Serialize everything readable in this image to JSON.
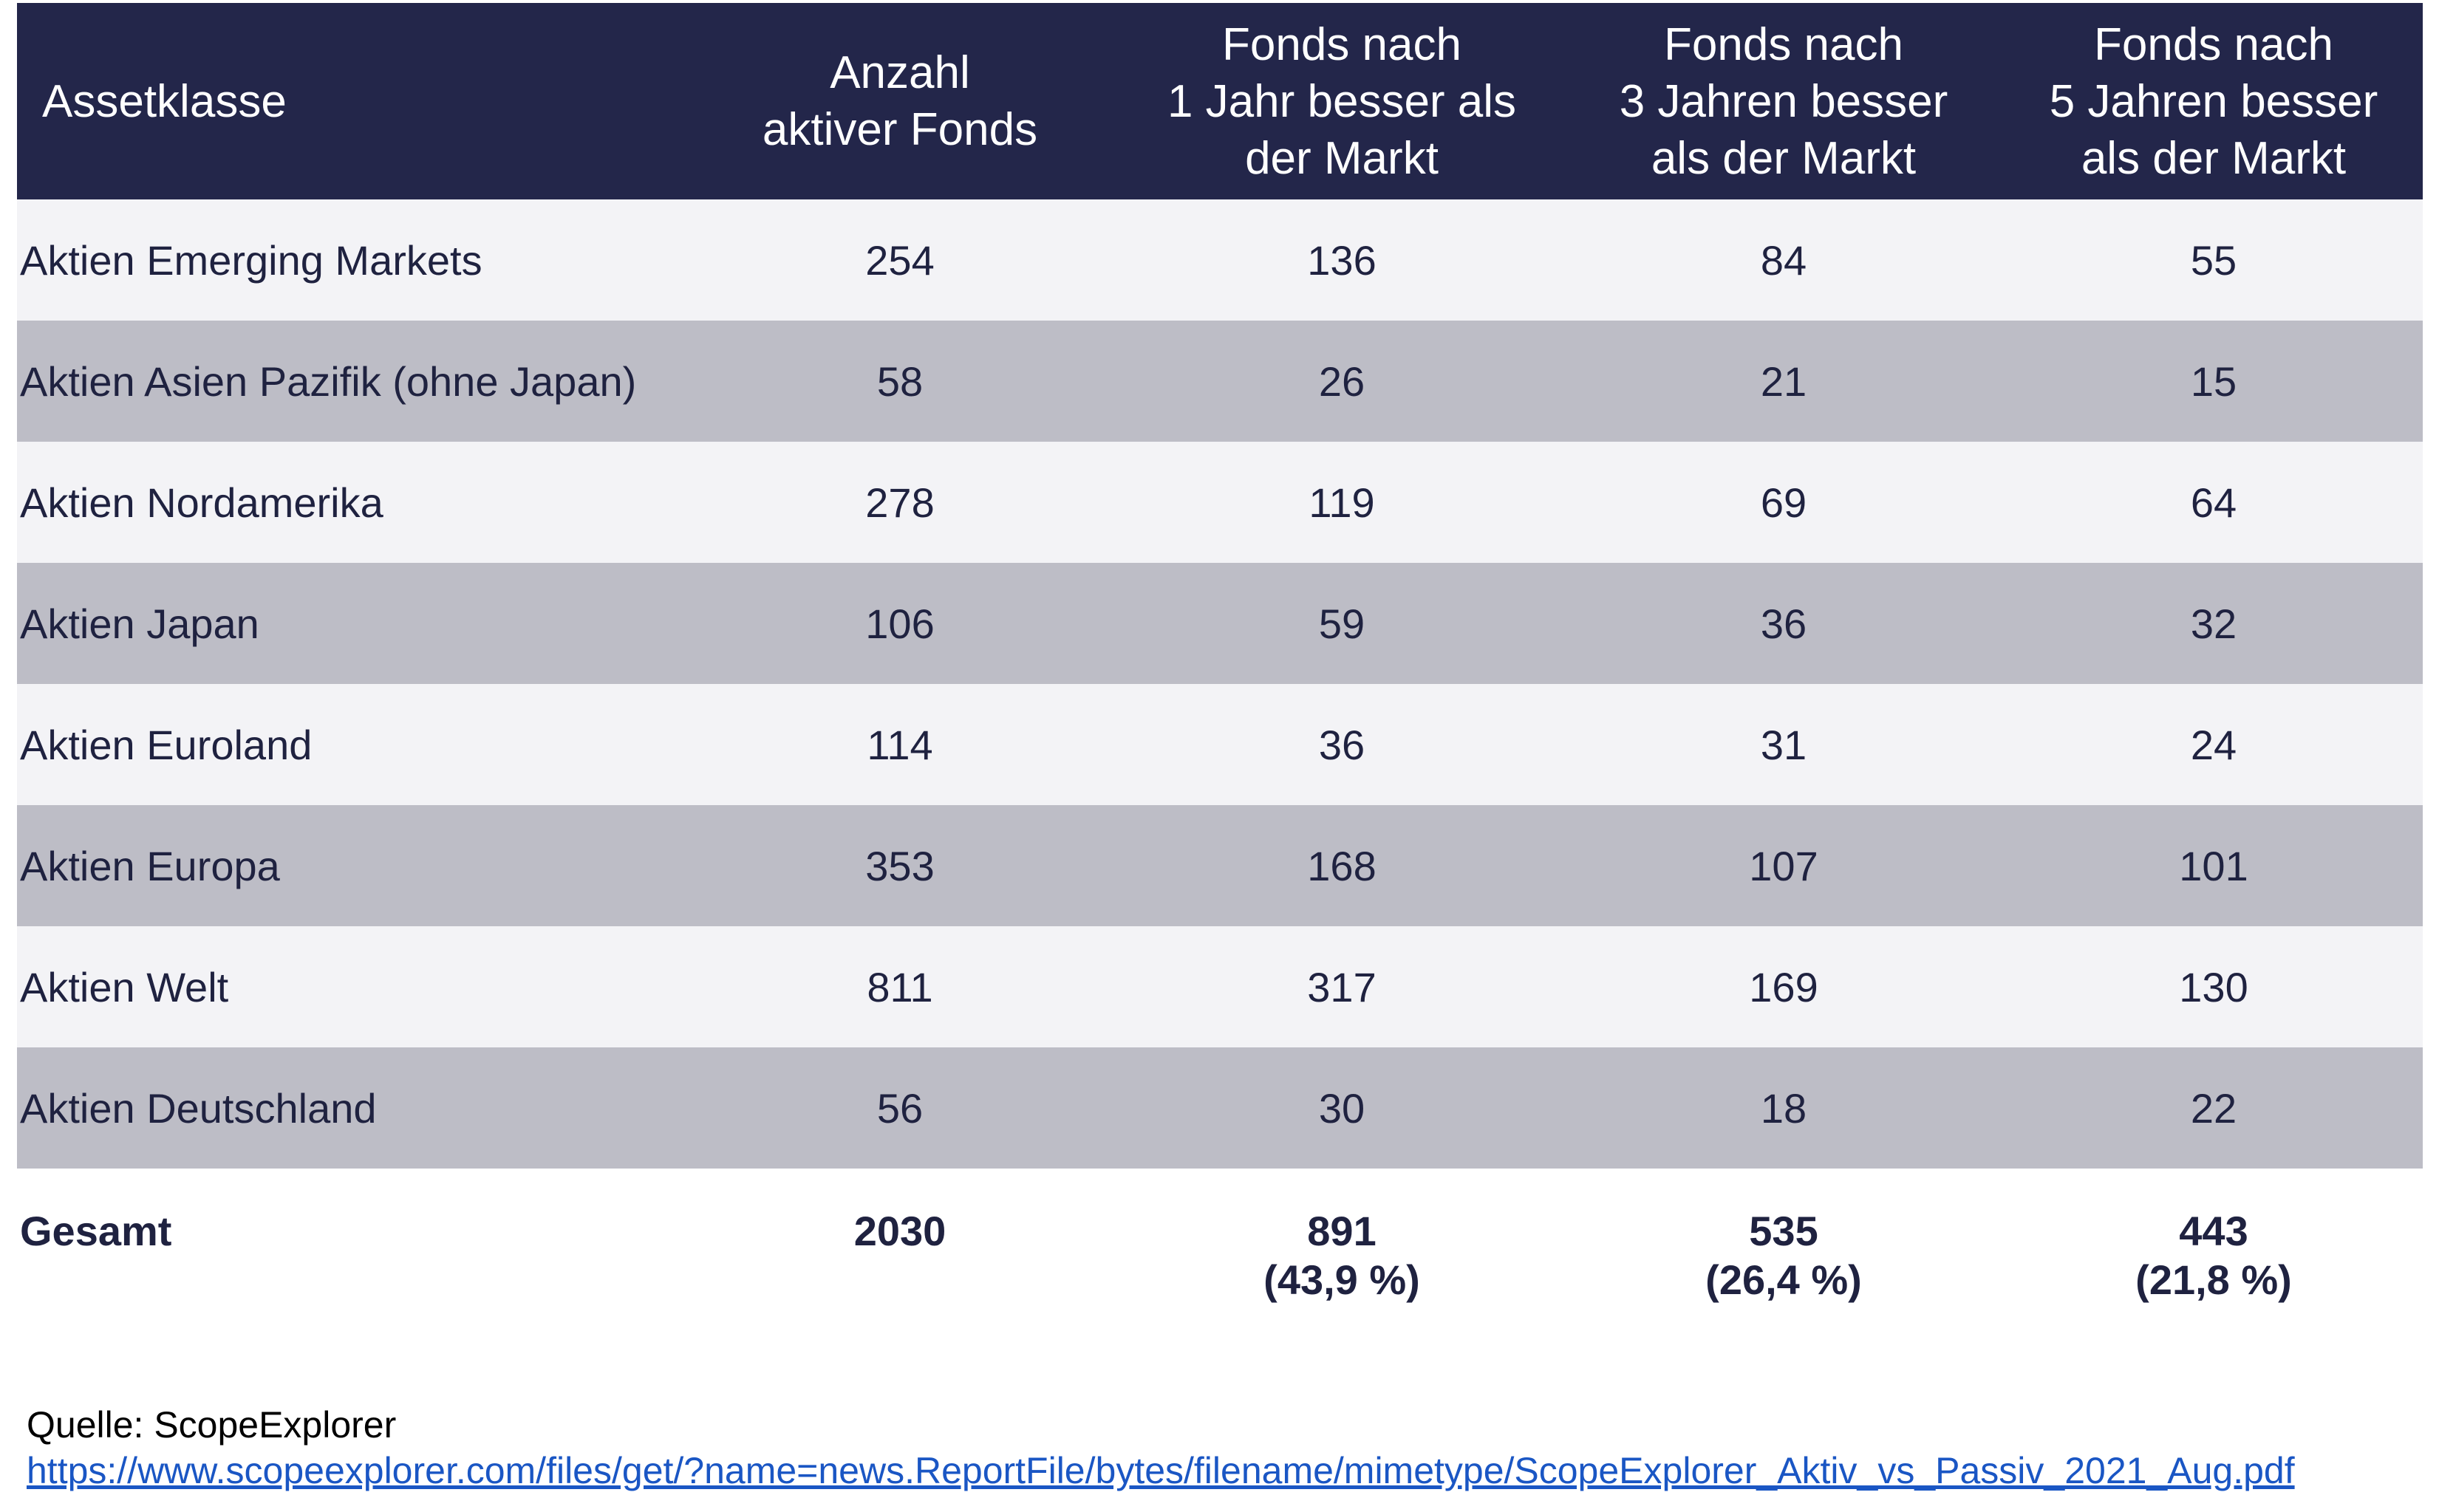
{
  "table": {
    "headers": [
      [
        "Assetklasse"
      ],
      [
        "Anzahl",
        "aktiver Fonds"
      ],
      [
        "Fonds nach",
        "1 Jahr besser als",
        "der Markt"
      ],
      [
        "Fonds nach",
        "3 Jahren besser",
        "als der Markt"
      ],
      [
        "Fonds nach",
        "5 Jahren besser",
        "als der Markt"
      ]
    ],
    "rows": [
      [
        "Aktien Emerging Markets",
        "254",
        "136",
        "84",
        "55"
      ],
      [
        "Aktien Asien Pazifik (ohne Japan)",
        "58",
        "26",
        "21",
        "15"
      ],
      [
        "Aktien Nordamerika",
        "278",
        "119",
        "69",
        "64"
      ],
      [
        "Aktien Japan",
        "106",
        "59",
        "36",
        "32"
      ],
      [
        "Aktien Euroland",
        "114",
        "36",
        "31",
        "24"
      ],
      [
        "Aktien Europa",
        "353",
        "168",
        "107",
        "101"
      ],
      [
        "Aktien Welt",
        "811",
        "317",
        "169",
        "130"
      ],
      [
        "Aktien Deutschland",
        "56",
        "30",
        "18",
        "22"
      ]
    ],
    "total": {
      "label": "Gesamt",
      "count": "2030",
      "y1": "891",
      "y1_pct": "(43,9 %)",
      "y3": "535",
      "y3_pct": "(26,4 %)",
      "y5": "443",
      "y5_pct": "(21,8 %)"
    }
  },
  "colors": {
    "header_bg": "#23264a",
    "row_light": "#f3f3f6",
    "row_dark": "#bdbdc6",
    "link": "#1a56c4"
  },
  "source": {
    "label": "Quelle: ScopeExplorer",
    "url": "https://www.scopeexplorer.com/files/get/?name=news.ReportFile/bytes/filename/mimetype/ScopeExplorer_Aktiv_vs_Passiv_2021_Aug.pdf"
  }
}
